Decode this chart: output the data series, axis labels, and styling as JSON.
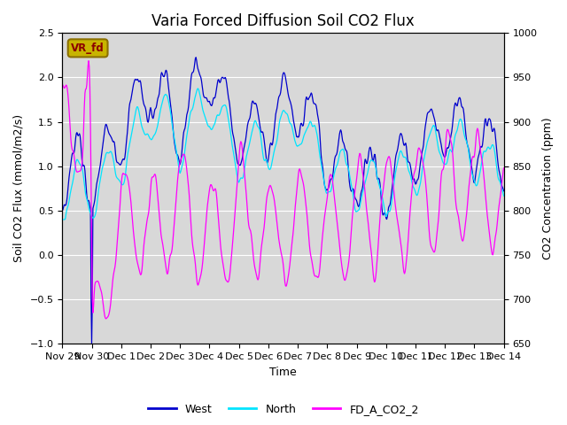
{
  "title": "Varia Forced Diffusion Soil CO2 Flux",
  "xlabel": "Time",
  "ylabel_left": "Soil CO2 Flux (mmol/m2/s)",
  "ylabel_right": "CO2 Concentration (ppm)",
  "ylim_left": [
    -1.0,
    2.5
  ],
  "ylim_right": [
    650,
    1000
  ],
  "annotation_text": "VR_fd",
  "annotation_bg": "#c8b400",
  "annotation_border": "#8B7000",
  "line_west_color": "#0000CD",
  "line_north_color": "#00E5FF",
  "line_co2_color": "#FF00FF",
  "legend_entries": [
    "West",
    "North",
    "FD_A_CO2_2"
  ],
  "title_fontsize": 12,
  "axis_fontsize": 9,
  "tick_fontsize": 8,
  "bg_color": "#d8d8d8"
}
